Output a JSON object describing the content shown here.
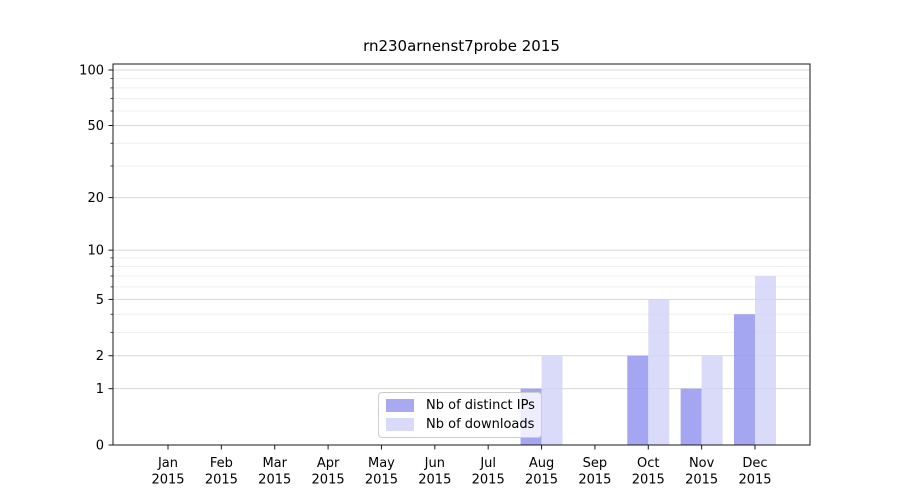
{
  "chart_data": {
    "type": "bar",
    "title": "rn230arnenst7probe 2015",
    "categories": [
      {
        "month": "Jan",
        "year": "2015"
      },
      {
        "month": "Feb",
        "year": "2015"
      },
      {
        "month": "Mar",
        "year": "2015"
      },
      {
        "month": "Apr",
        "year": "2015"
      },
      {
        "month": "May",
        "year": "2015"
      },
      {
        "month": "Jun",
        "year": "2015"
      },
      {
        "month": "Jul",
        "year": "2015"
      },
      {
        "month": "Aug",
        "year": "2015"
      },
      {
        "month": "Sep",
        "year": "2015"
      },
      {
        "month": "Oct",
        "year": "2015"
      },
      {
        "month": "Nov",
        "year": "2015"
      },
      {
        "month": "Dec",
        "year": "2015"
      }
    ],
    "series": [
      {
        "name": "Nb of distinct IPs",
        "values": [
          0,
          0,
          0,
          0,
          0,
          0,
          0,
          1,
          0,
          2,
          1,
          4
        ],
        "color": "#a8a9f2",
        "bar_fill": "#9192ef"
      },
      {
        "name": "Nb of downloads",
        "values": [
          0,
          0,
          0,
          0,
          0,
          0,
          0,
          2,
          0,
          5,
          2,
          7
        ],
        "color": "#d8daf8",
        "bar_fill": "#d2d3f8"
      }
    ],
    "y_axis": {
      "scale": "log1p",
      "major_ticks": [
        0,
        1,
        2,
        5,
        10,
        20,
        50,
        100
      ],
      "minor_ticks": [
        3,
        4,
        6,
        7,
        8,
        9,
        30,
        40,
        60,
        70,
        80,
        90
      ],
      "ylim": [
        0,
        109
      ]
    },
    "grid": {
      "major_color": "#d8d8d8",
      "minor_color": "#efefef"
    },
    "legend_position": "lower center-left inside plot",
    "axis_color": "#1a1a1a"
  }
}
